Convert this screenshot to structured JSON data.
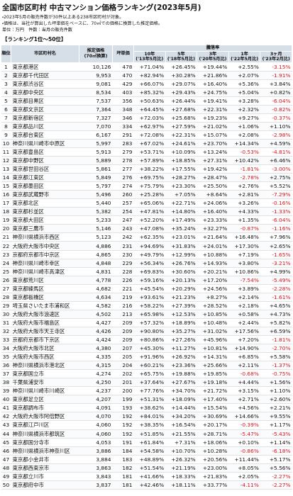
{
  "header": {
    "title": "全国市区町村 中古マンション価格ランキング(2023年5月)",
    "notes": [
      "・2023年5月の販売件数が30件以上ある238市区町村が対象。",
      "・価格は、当社が算出した坪単価をベースに、70㎡での価格に換算した推定価格。",
      "単位：万円　件数：当月の販売件数"
    ],
    "section": "【ランキング1位～50位】"
  },
  "table": {
    "columns": [
      {
        "label": "順位"
      },
      {
        "label": "市区町村名"
      },
      {
        "label": "推定価格",
        "sub": "(70㎡換算)"
      },
      {
        "label": "坪単価"
      },
      {
        "label": "10年",
        "sub": "('13年5月比)"
      },
      {
        "label": "5年",
        "sub": "('18年5月比)"
      },
      {
        "label": "3年",
        "sub": "('20年5月比)"
      },
      {
        "label": "1年",
        "sub": "('22年5月比)"
      },
      {
        "label": "3ヶ月",
        "sub": "('23年2月比)"
      }
    ],
    "group": "騰落率",
    "rows": [
      [
        1,
        "東京都港区",
        "10,126",
        478,
        "+71.04%",
        "+26.45%",
        "+19.44%",
        "+2.55%",
        "-3.15%"
      ],
      [
        2,
        "東京都千代田区",
        "9,953",
        470,
        "+82.94%",
        "+30.28%",
        "+21.86%",
        "+2.07%",
        "-1.91%"
      ],
      [
        3,
        "東京都渋谷区",
        "9,081",
        429,
        "+66.07%",
        "+29.07%",
        "+16.40%",
        "+5.36%",
        "+3.84%"
      ],
      [
        4,
        "東京都中央区",
        "8,534",
        403,
        "+85.32%",
        "+29.43%",
        "+24.75%",
        "+5.04%",
        "+0.82%"
      ],
      [
        5,
        "東京都目黒区",
        "7,537",
        356,
        "+50.63%",
        "+26.44%",
        "+19.41%",
        "+3.28%",
        "-6.04%"
      ],
      [
        6,
        "東京都文京区",
        "7,364",
        348,
        "+64.45%",
        "+27.68%",
        "+22.31%",
        "+2.32%",
        "-0.82%"
      ],
      [
        7,
        "東京都新宿区",
        "7,327",
        346,
        "+72.03%",
        "+25.68%",
        "+19.23%",
        "+9.27%",
        "-0.37%"
      ],
      [
        8,
        "東京都品川区",
        "7,070",
        334,
        "+62.97%",
        "+27.59%",
        "+21.02%",
        "+1.06%",
        "+1.10%"
      ],
      [
        9,
        "東京都台東区",
        "6,167",
        291,
        "+72.08%",
        "+22.31%",
        "+15.07%",
        "+2.08%",
        "-2.98%"
      ],
      [
        10,
        "神奈川県川崎市中原区",
        "5,997",
        283,
        "+67.02%",
        "+24.61%",
        "+23.70%",
        "+14.34%",
        "+4.59%"
      ],
      [
        11,
        "東京都豊島区",
        "5,913",
        279,
        "+53.71%",
        "+10.09%",
        "+13.24%",
        "-0.53%",
        "-4.81%"
      ],
      [
        12,
        "東京都中野区",
        "5,889",
        278,
        "+57.89%",
        "+18.85%",
        "+27.31%",
        "+10.42%",
        "+6.46%"
      ],
      [
        13,
        "東京都世田谷区",
        "5,861",
        277,
        "+38.22%",
        "+17.55%",
        "+19.42%",
        "-1.81%",
        "-3.00%"
      ],
      [
        14,
        "東京都江東区",
        "5,849",
        276,
        "+69.75%",
        "+28.27%",
        "+28.47%",
        "-2.78%",
        "+2.75%"
      ],
      [
        15,
        "東京都墨田区",
        "5,797",
        274,
        "+75.79%",
        "+23.30%",
        "+25.50%",
        "+2.76%",
        "+5.52%"
      ],
      [
        16,
        "東京都武蔵野市",
        "5,496",
        260,
        "+25.28%",
        "+7.05%",
        "+8.64%",
        "+2.81%",
        "-7.29%"
      ],
      [
        17,
        "東京都北区",
        "5,440",
        257,
        "+65.06%",
        "+22.71%",
        "+24.06%",
        "+3.26%",
        "-0.16%"
      ],
      [
        18,
        "東京都杉並区",
        "5,382",
        254,
        "+47.81%",
        "+14.80%",
        "+16.40%",
        "+4.33%",
        "-1.33%"
      ],
      [
        19,
        "東京都大田区",
        "5,233",
        247,
        "+52.20%",
        "+17.49%",
        "+23.33%",
        "+1.35%",
        "-6.04%"
      ],
      [
        20,
        "東京都三鷹市",
        "5,146",
        243,
        "+47.08%",
        "+35.24%",
        "+32.27%",
        "-0.87%",
        "-1.16%"
      ],
      [
        21,
        "神奈川県横浜市西区",
        "5,123",
        242,
        "+62.35%",
        "+23.01%",
        "+21.64%",
        "+16.48%",
        "+7.96%"
      ],
      [
        22,
        "大阪府大阪市中央区",
        "4,886",
        231,
        "+94.69%",
        "+31.83%",
        "+24.01%",
        "+17.30%",
        "+2.65%"
      ],
      [
        23,
        "京都府京都市中京区",
        "4,865",
        230,
        "+49.79%",
        "+12.99%",
        "+10.88%",
        "+7.19%",
        "-1.65%"
      ],
      [
        24,
        "神奈川県川崎市幸区",
        "4,848",
        229,
        "+56.34%",
        "+26.76%",
        "+14.93%",
        "+3.80%",
        "-3.21%"
      ],
      [
        25,
        "神奈川県川崎市高津区",
        "4,831",
        228,
        "+69.83%",
        "+30.60%",
        "+20.21%",
        "+10.86%",
        "+4.99%"
      ],
      [
        26,
        "東京都荒川区",
        "4,778",
        226,
        "+59.16%",
        "+20.13%",
        "+17.20%",
        "-7.54%",
        "-5.49%"
      ],
      [
        27,
        "東京都練馬区",
        "4,682",
        221,
        "+45.54%",
        "+20.29%",
        "+24.56%",
        "+3.89%",
        "-2.28%"
      ],
      [
        28,
        "東京都板橋区",
        "4,634",
        219,
        "+93.61%",
        "+21.23%",
        "+8.27%",
        "+2.14%",
        "-1.61%"
      ],
      [
        29,
        "埼玉県さいたま市浦和区",
        "4,582",
        216,
        "+58.22%",
        "+27.39%",
        "+28.52%",
        "+2.18%",
        "+4.65%"
      ],
      [
        30,
        "大阪府大阪市浪速区",
        "4,502",
        213,
        "+65.98%",
        "+12.53%",
        "+10.85%",
        "+0.58%",
        "+4.73%"
      ],
      [
        31,
        "大阪府大阪市福島区",
        "4,427",
        209,
        "+57.32%",
        "+18.89%",
        "+10.48%",
        "+2.44%",
        "+5.82%"
      ],
      [
        32,
        "大阪府大阪市天王寺区",
        "4,426",
        209,
        "+90.80%",
        "+35.27%",
        "+31.02%",
        "+17.56%",
        "+6.59%"
      ],
      [
        33,
        "京都府京都市下京区",
        "4,424",
        209,
        "+80.86%",
        "+27.26%",
        "+45.96%",
        "+7.20%",
        "-1.81%"
      ],
      [
        34,
        "大阪府大阪市北区",
        "4,380",
        207,
        "+45.30%",
        "+11.27%",
        "+10.81%",
        "+14.90%",
        "-2.70%"
      ],
      [
        35,
        "大阪府大阪市西区",
        "4,335",
        205,
        "+91.96%",
        "+26.92%",
        "+14.31%",
        "+6.85%",
        "+5.58%"
      ],
      [
        36,
        "神奈川県横浜市港北区",
        "4,315",
        204,
        "+60.21%",
        "+23.36%",
        "+25.66%",
        "+2.11%",
        "-1.37%"
      ],
      [
        37,
        "東京都国立市",
        "4,274",
        202,
        "+65.75%",
        "+19.88%",
        "+19.85%",
        "-0.68%",
        "-0.75%"
      ],
      [
        38,
        "千葉県浦安市",
        "4,250",
        201,
        "+37.64%",
        "+27.67%",
        "+19.18%",
        "+4.44%",
        "+1.56%"
      ],
      [
        39,
        "神奈川県川崎市川崎区",
        "4,237",
        200,
        "+77.76%",
        "+34.70%",
        "+21.72%",
        "+3.15%",
        "+1.10%"
      ],
      [
        40,
        "東京都足立区",
        "4,207",
        199,
        "+51.31%",
        "+18.09%",
        "+17.40%",
        "+2.71%",
        "+2.60%"
      ],
      [
        41,
        "東京都調布市",
        "4,091",
        193,
        "+38.62%",
        "+14.44%",
        "+15.54%",
        "+4.56%",
        "+2.21%"
      ],
      [
        42,
        "大阪府大阪市阿倍野区",
        "4,070",
        192,
        "+84.01%",
        "+34.20%",
        "+30.69%",
        "+14.66%",
        "+9.55%"
      ],
      [
        43,
        "東京都江戸川区",
        "4,060",
        192,
        "+38.35%",
        "+16.54%",
        "+20.17%",
        "-0.39%",
        "+1.17%"
      ],
      [
        44,
        "神奈川県横浜市都筑区",
        "4,060",
        192,
        "+51.85%",
        "+21.55%",
        "+28.71%",
        "-5.47%",
        "-5.43%"
      ],
      [
        45,
        "東京都国分寺市",
        "4,053",
        191,
        "+61.84%",
        "+7.31%",
        "+18.06%",
        "+0.10%",
        "+1.14%"
      ],
      [
        46,
        "神奈川県横浜市神奈川区",
        "3,886",
        184,
        "+54.58%",
        "+10.70%",
        "+10.28%",
        "-0.86%",
        "-6.18%"
      ],
      [
        47,
        "東京都小金井市",
        "3,884",
        183,
        "+48.89%",
        "+26.32%",
        "+20.56%",
        "+11.44%",
        "+5.17%"
      ],
      [
        48,
        "東京都西東京市",
        "3,863",
        182,
        "+51.54%",
        "+21.19%",
        "+23.00%",
        "+8.05%",
        "+5.56%"
      ],
      [
        49,
        "東京都立川市",
        "3,843",
        181,
        "+41.66%",
        "+18.33%",
        "+21.83%",
        "+2.05%",
        "-2.27%"
      ],
      [
        50,
        "東京都府中市",
        "3,837",
        181,
        "+42.46%",
        "+18.11%",
        "+33.77%",
        "-4.11%",
        "-2.27%"
      ]
    ]
  }
}
